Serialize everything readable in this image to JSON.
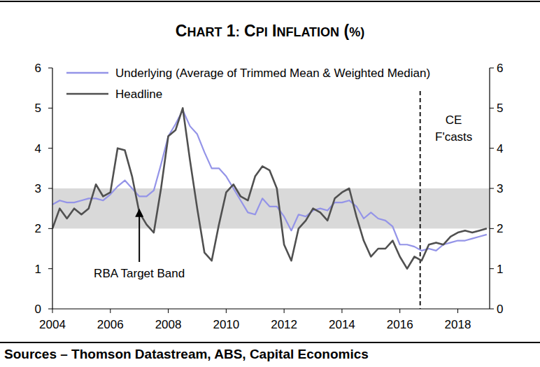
{
  "chart_data": {
    "type": "line",
    "title": "CHART 1: CPI INFLATION (%)",
    "source": "Sources – Thomson Datastream, ABS, Capital Economics",
    "x": [
      2004.0,
      2004.25,
      2004.5,
      2004.75,
      2005.0,
      2005.25,
      2005.5,
      2005.75,
      2006.0,
      2006.25,
      2006.5,
      2006.75,
      2007.0,
      2007.25,
      2007.5,
      2007.75,
      2008.0,
      2008.25,
      2008.5,
      2008.75,
      2009.0,
      2009.25,
      2009.5,
      2009.75,
      2010.0,
      2010.25,
      2010.5,
      2010.75,
      2011.0,
      2011.25,
      2011.5,
      2011.75,
      2012.0,
      2012.25,
      2012.5,
      2012.75,
      2013.0,
      2013.25,
      2013.5,
      2013.75,
      2014.0,
      2014.25,
      2014.5,
      2014.75,
      2015.0,
      2015.25,
      2015.5,
      2015.75,
      2016.0,
      2016.25,
      2016.5,
      2016.75,
      2017.0,
      2017.25,
      2017.5,
      2017.75,
      2018.0,
      2018.25,
      2018.5,
      2018.75,
      2019.0
    ],
    "series": [
      {
        "name": "Underlying (Average of Trimmed Mean & Weighted Median)",
        "color": "#9494e8",
        "values": [
          2.6,
          2.7,
          2.65,
          2.65,
          2.7,
          2.75,
          2.75,
          2.7,
          2.85,
          3.05,
          3.2,
          3.0,
          2.8,
          2.8,
          2.95,
          3.6,
          4.3,
          4.6,
          4.95,
          4.55,
          4.35,
          3.9,
          3.5,
          3.5,
          3.3,
          3.0,
          2.7,
          2.4,
          2.35,
          2.75,
          2.55,
          2.55,
          2.3,
          1.95,
          2.35,
          2.3,
          2.45,
          2.5,
          2.45,
          2.65,
          2.65,
          2.7,
          2.55,
          2.25,
          2.4,
          2.25,
          2.2,
          2.05,
          1.6,
          1.6,
          1.55,
          1.45,
          1.5,
          1.45,
          1.6,
          1.65,
          1.7,
          1.7,
          1.75,
          1.8,
          1.85
        ]
      },
      {
        "name": "Headline",
        "color": "#505050",
        "values": [
          2.0,
          2.5,
          2.25,
          2.5,
          2.35,
          2.5,
          3.1,
          2.8,
          2.9,
          4.0,
          3.95,
          3.3,
          2.4,
          2.1,
          1.9,
          3.0,
          4.3,
          4.45,
          5.0,
          3.7,
          2.5,
          1.4,
          1.2,
          2.1,
          2.9,
          3.1,
          2.8,
          2.7,
          3.3,
          3.55,
          3.45,
          3.0,
          1.6,
          1.2,
          2.0,
          2.2,
          2.5,
          2.4,
          2.2,
          2.75,
          2.9,
          3.0,
          2.3,
          1.7,
          1.3,
          1.5,
          1.5,
          1.7,
          1.3,
          1.0,
          1.3,
          1.2,
          1.6,
          1.65,
          1.6,
          1.8,
          1.9,
          1.95,
          1.9,
          1.95,
          2.0
        ]
      }
    ],
    "xlim": [
      2004,
      2019.1
    ],
    "xticks": [
      2004,
      2006,
      2008,
      2010,
      2012,
      2014,
      2016,
      2018
    ],
    "ylim": [
      0,
      6
    ],
    "yticks": [
      0,
      1,
      2,
      3,
      4,
      5,
      6
    ],
    "y2lim": [
      0,
      6
    ],
    "y2ticks": [
      0,
      1,
      2,
      3,
      4,
      5,
      6
    ],
    "band": {
      "from": 2,
      "to": 3,
      "color": "#d9d9d9"
    },
    "annotations": [
      {
        "text": "RBA Target Band",
        "x": 2007,
        "y": 2.5
      }
    ],
    "forecast": {
      "x": 2016.7,
      "label": [
        "CE",
        "F'casts"
      ]
    },
    "legend": "top-left",
    "grid": false
  }
}
